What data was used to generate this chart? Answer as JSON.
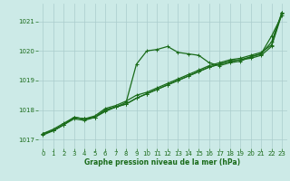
{
  "background_color": "#cceae7",
  "grid_color": "#aacccc",
  "line_color": "#1a6b1a",
  "xlabel": "Graphe pression niveau de la mer (hPa)",
  "xlim": [
    -0.5,
    23.5
  ],
  "ylim": [
    1016.7,
    1021.6
  ],
  "yticks": [
    1017,
    1018,
    1019,
    1020,
    1021
  ],
  "xticks": [
    0,
    1,
    2,
    3,
    4,
    5,
    6,
    7,
    8,
    9,
    10,
    11,
    12,
    13,
    14,
    15,
    16,
    17,
    18,
    19,
    20,
    21,
    22,
    23
  ],
  "series": [
    [
      1017.2,
      1017.35,
      1017.55,
      1017.75,
      1017.7,
      1017.8,
      1018.05,
      1018.15,
      1018.3,
      1018.5,
      1018.6,
      1018.75,
      1018.9,
      1019.05,
      1019.2,
      1019.35,
      1019.5,
      1019.6,
      1019.7,
      1019.75,
      1019.85,
      1019.95,
      1020.2,
      1021.3
    ],
    [
      1017.2,
      1017.3,
      1017.5,
      1017.75,
      1017.7,
      1017.75,
      1018.0,
      1018.1,
      1018.2,
      1018.4,
      1018.55,
      1018.7,
      1018.85,
      1019.0,
      1019.15,
      1019.3,
      1019.45,
      1019.55,
      1019.65,
      1019.7,
      1019.75,
      1019.85,
      1020.15,
      1021.25
    ],
    [
      1017.2,
      1017.3,
      1017.5,
      1017.75,
      1017.7,
      1017.75,
      1018.0,
      1018.1,
      1018.2,
      1018.4,
      1018.55,
      1018.7,
      1018.85,
      1019.0,
      1019.15,
      1019.3,
      1019.45,
      1019.55,
      1019.65,
      1019.7,
      1019.8,
      1019.9,
      1020.3,
      1021.3
    ],
    [
      1017.15,
      1017.3,
      1017.5,
      1017.7,
      1017.65,
      1017.75,
      1017.95,
      1018.1,
      1018.25,
      1019.55,
      1020.0,
      1020.05,
      1020.15,
      1019.95,
      1019.9,
      1019.85,
      1019.6,
      1019.5,
      1019.6,
      1019.65,
      1019.8,
      1019.9,
      1020.5,
      1021.2
    ]
  ]
}
